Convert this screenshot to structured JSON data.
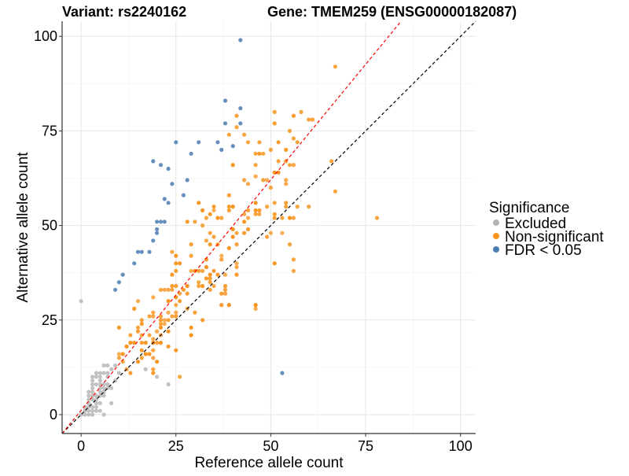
{
  "chart_data": {
    "type": "scatter",
    "title_left": "Variant: rs2240162",
    "title_right": "Gene: TMEM259 (ENSG00000182087)",
    "xlabel": "Reference allele count",
    "ylabel": "Alternative allele count",
    "xlim": [
      -5,
      104
    ],
    "ylim": [
      -5,
      104
    ],
    "x_ticks": [
      0,
      25,
      50,
      75,
      100
    ],
    "y_ticks": [
      0,
      25,
      50,
      75,
      100
    ],
    "x_tick_labels": [
      "0",
      "25",
      "50",
      "75",
      "100"
    ],
    "y_tick_labels": [
      "0",
      "25",
      "50",
      "75",
      "100"
    ],
    "grid": true,
    "legend": {
      "title": "Significance",
      "position": "right",
      "entries": [
        {
          "label": "Excluded",
          "color": "#b3b3b3"
        },
        {
          "label": "Non-significant",
          "color": "#f7941d"
        },
        {
          "label": "FDR < 0.05",
          "color": "#4a7db3"
        }
      ]
    },
    "reference_lines": [
      {
        "name": "identity",
        "slope": 1.0,
        "intercept": 0,
        "color": "#000000",
        "style": "dashed"
      },
      {
        "name": "fitted",
        "slope": 1.22,
        "intercept": 1.1,
        "color": "#ff0000",
        "style": "dashed"
      }
    ],
    "series": [
      {
        "name": "FDR < 0.05",
        "color": "#4a7db3",
        "points": [
          [
            42,
            99
          ],
          [
            38,
            83
          ],
          [
            38,
            77
          ],
          [
            42,
            81
          ],
          [
            42,
            77
          ],
          [
            36,
            72
          ],
          [
            31,
            72
          ],
          [
            25,
            72
          ],
          [
            19,
            67
          ],
          [
            21,
            66
          ],
          [
            23,
            65
          ],
          [
            29,
            69
          ],
          [
            37,
            70
          ],
          [
            40,
            71
          ],
          [
            24,
            61
          ],
          [
            28,
            62
          ],
          [
            22,
            57
          ],
          [
            23,
            56
          ],
          [
            27,
            58
          ],
          [
            20,
            51
          ],
          [
            21,
            51
          ],
          [
            22,
            51
          ],
          [
            20,
            49
          ],
          [
            20,
            48
          ],
          [
            19,
            46
          ],
          [
            18,
            43
          ],
          [
            15,
            43
          ],
          [
            16,
            43
          ],
          [
            14,
            40
          ],
          [
            11,
            37
          ],
          [
            10,
            35
          ],
          [
            9,
            33
          ],
          [
            53,
            11
          ]
        ]
      },
      {
        "name": "Non-significant",
        "color": "#f7941d",
        "outliers": [
          [
            67,
            92
          ],
          [
            78,
            52
          ],
          [
            67,
            59
          ],
          [
            66,
            67
          ],
          [
            58,
            80
          ],
          [
            60,
            78
          ],
          [
            61,
            78
          ],
          [
            51,
            80
          ],
          [
            55,
            75
          ],
          [
            56,
            73
          ],
          [
            57,
            72
          ],
          [
            46,
            69
          ],
          [
            50,
            70
          ],
          [
            39,
            74
          ],
          [
            43,
            74
          ],
          [
            41,
            76
          ],
          [
            55,
            45
          ],
          [
            56,
            41
          ],
          [
            56,
            38
          ],
          [
            60,
            55
          ],
          [
            57,
            55
          ],
          [
            26,
            10
          ],
          [
            19,
            12
          ],
          [
            43,
            62
          ],
          [
            40,
            66
          ],
          [
            48,
            62
          ]
        ]
      },
      {
        "name": "Excluded",
        "color": "#b3b3b3",
        "outliers": [
          [
            0,
            30
          ],
          [
            17,
            12
          ],
          [
            20,
            10
          ],
          [
            23,
            8
          ]
        ]
      }
    ]
  }
}
